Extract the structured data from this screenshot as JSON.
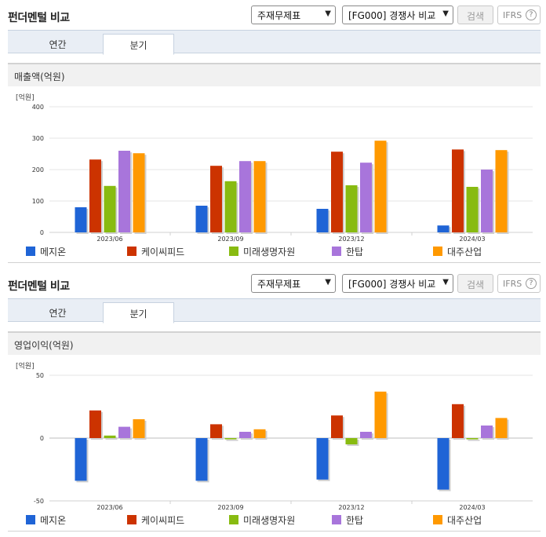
{
  "colors": {
    "series": [
      "#1f64d6",
      "#cc3300",
      "#88bb11",
      "#a875db",
      "#ff9900"
    ],
    "grid": "#e6e6e6",
    "axis": "#d0d0d0"
  },
  "panels": [
    {
      "title": "펀더멘털 비교",
      "select1": "주재무제표",
      "select2": "[FG000] 경쟁사 비교",
      "search_label": "검색",
      "ifrs_label": "IFRS",
      "ifrs_icon": "help-circle-icon",
      "tab_annual": "연간",
      "tab_quarter": "분기",
      "section_title": "매출액(억원)",
      "unit": "[억원]"
    },
    {
      "title": "펀더멘털 비교",
      "select1": "주재무제표",
      "select2": "[FG000] 경쟁사 비교",
      "search_label": "검색",
      "ifrs_label": "IFRS",
      "ifrs_icon": "help-circle-icon",
      "tab_annual": "연간",
      "tab_quarter": "분기",
      "section_title": "영업이익(억원)",
      "unit": "[억원]"
    }
  ],
  "chart_data": [
    {
      "type": "bar",
      "title": "매출액(억원)",
      "ylabel": "[억원]",
      "categories": [
        "2023/06",
        "2023/09",
        "2023/12",
        "2024/03"
      ],
      "ylim": [
        0,
        400
      ],
      "yticks": [
        0,
        100,
        200,
        300,
        400
      ],
      "grid": true,
      "legend": "bottom",
      "series": [
        {
          "name": "메지온",
          "values": [
            80,
            85,
            75,
            22
          ]
        },
        {
          "name": "케이씨피드",
          "values": [
            232,
            212,
            257,
            264
          ]
        },
        {
          "name": "미래생명자원",
          "values": [
            148,
            163,
            150,
            145
          ]
        },
        {
          "name": "한탑",
          "values": [
            260,
            227,
            222,
            200
          ]
        },
        {
          "name": "대주산업",
          "values": [
            252,
            227,
            292,
            262
          ]
        }
      ]
    },
    {
      "type": "bar",
      "title": "영업이익(억원)",
      "ylabel": "[억원]",
      "categories": [
        "2023/06",
        "2023/09",
        "2023/12",
        "2024/03"
      ],
      "ylim": [
        -50,
        50
      ],
      "yticks": [
        -50,
        0,
        50
      ],
      "grid": true,
      "legend": "bottom",
      "series": [
        {
          "name": "메지온",
          "values": [
            -34,
            -34,
            -33,
            -41
          ]
        },
        {
          "name": "케이씨피드",
          "values": [
            22,
            11,
            18,
            27
          ]
        },
        {
          "name": "미래생명자원",
          "values": [
            2,
            -1,
            -5,
            -1
          ]
        },
        {
          "name": "한탑",
          "values": [
            9,
            5,
            5,
            10
          ]
        },
        {
          "name": "대주산업",
          "values": [
            15,
            7,
            37,
            16
          ]
        }
      ]
    }
  ]
}
